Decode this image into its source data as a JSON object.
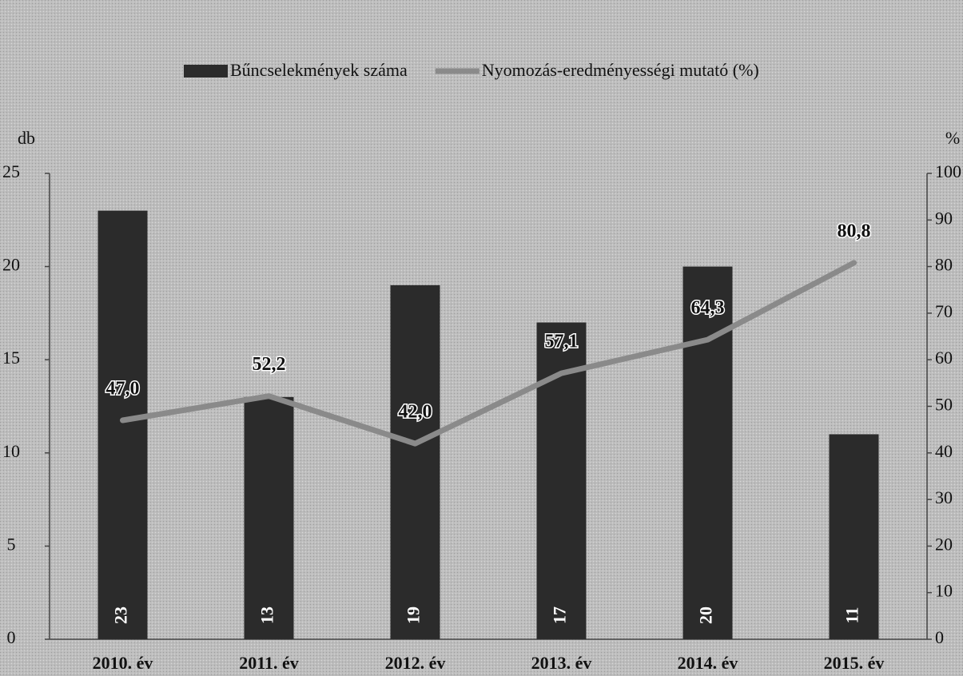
{
  "chart_data": {
    "type": "bar",
    "categories": [
      "2010. év",
      "2011. év",
      "2012. év",
      "2013. év",
      "2014. év",
      "2015. év"
    ],
    "series": [
      {
        "name": "Bűncselekmények száma",
        "type": "bar",
        "color": "#2b2b2b",
        "values": [
          23,
          13,
          19,
          17,
          20,
          11
        ]
      },
      {
        "name": "Nyomozás-eredményességi mutató (%)",
        "type": "line",
        "color": "#8a8a8a",
        "axis": "y2",
        "values": [
          47.0,
          52.2,
          42.0,
          57.1,
          64.3,
          80.8
        ],
        "value_labels": [
          "47,0",
          "52,2",
          "42,0",
          "57,1",
          "64,3",
          "80,8"
        ]
      }
    ],
    "ylabel": "db",
    "y2label": "%",
    "ylim": [
      0,
      25
    ],
    "yticks": [
      0,
      5,
      10,
      15,
      20,
      25
    ],
    "y2lim": [
      0,
      100
    ],
    "y2ticks": [
      0,
      10,
      20,
      30,
      40,
      50,
      60,
      70,
      80,
      90,
      100
    ],
    "legend": "top"
  }
}
